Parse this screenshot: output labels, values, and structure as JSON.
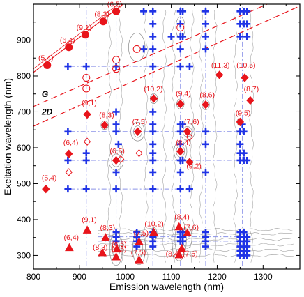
{
  "chart_data": {
    "type": "scatter",
    "xlabel": "Emission wavelength (nm)",
    "ylabel": "Excitation wavelength (nm)",
    "xlim": [
      800,
      1380
    ],
    "ylim": [
      262,
      1000
    ],
    "x_ticks": [
      "800",
      "900",
      "1000",
      "1100",
      "1200",
      "1300"
    ],
    "y_ticks": [
      "300",
      "400",
      "500",
      "600",
      "700",
      "800",
      "900"
    ],
    "colors": {
      "red": "#e8141b",
      "blue": "#1f33e6",
      "grid_blue": "#8a92e8",
      "contour": "#8a8a8a"
    },
    "line_labels": [
      {
        "text": "G",
        "x": 818,
        "y": 742
      },
      {
        "text": "2D",
        "x": 818,
        "y": 692
      }
    ],
    "lines": [
      {
        "name": "solid",
        "style": "solid",
        "points": [
          [
            800,
            810
          ],
          [
            1000,
            1005
          ]
        ]
      },
      {
        "name": "G",
        "style": "dashed",
        "points": [
          [
            800,
            715
          ],
          [
            1380,
            1040
          ]
        ]
      },
      {
        "name": "2D",
        "style": "dashed",
        "points": [
          [
            800,
            660
          ],
          [
            1380,
            995
          ]
        ]
      }
    ],
    "dashdot_verticals": [
      915,
      980,
      1060,
      1120,
      1175,
      1255
    ],
    "dashdot_horizontals": [
      {
        "y": 827,
        "x1": 880,
        "x2": 1140
      },
      {
        "y": 645,
        "x1": 880,
        "x2": 1260
      },
      {
        "y": 565,
        "x1": 880,
        "x2": 1260
      },
      {
        "y": 485,
        "x1": 880,
        "x2": 1140
      },
      {
        "y": 352,
        "x1": 940,
        "x2": 1260
      },
      {
        "y": 340,
        "x1": 940,
        "x2": 1260
      }
    ],
    "filled_circles": [
      {
        "x": 830,
        "y": 830,
        "label": "(5,4)"
      },
      {
        "x": 877,
        "y": 880,
        "label": "(6,4)"
      },
      {
        "x": 913,
        "y": 915,
        "label": "(9,1)"
      },
      {
        "x": 952,
        "y": 952,
        "label": "(8,3)"
      },
      {
        "x": 980,
        "y": 980,
        "label": "(6,5)"
      }
    ],
    "open_circles": [
      {
        "x": 915,
        "y": 795
      },
      {
        "x": 915,
        "y": 765
      },
      {
        "x": 980,
        "y": 845
      },
      {
        "x": 980,
        "y": 820
      },
      {
        "x": 1025,
        "y": 875
      },
      {
        "x": 1120,
        "y": 935
      }
    ],
    "filled_diamonds": [
      {
        "x": 827,
        "y": 485,
        "label": "(5,4)",
        "lx": 818,
        "ly": 510
      },
      {
        "x": 877,
        "y": 583,
        "label": "(6,4)",
        "lx": 865,
        "ly": 608
      },
      {
        "x": 917,
        "y": 693,
        "label": "(9,1)",
        "lx": 905,
        "ly": 718
      },
      {
        "x": 955,
        "y": 663,
        "label": "(8,3)",
        "lx": 943,
        "ly": 684
      },
      {
        "x": 980,
        "y": 565,
        "label": "(6,5)",
        "lx": 966,
        "ly": 584
      },
      {
        "x": 1027,
        "y": 645,
        "label": "(7,5)",
        "lx": 1015,
        "ly": 666
      },
      {
        "x": 1062,
        "y": 737,
        "label": "(10,2)",
        "lx": 1040,
        "ly": 757
      },
      {
        "x": 1120,
        "y": 722,
        "label": "(9,4)",
        "lx": 1110,
        "ly": 745
      },
      {
        "x": 1120,
        "y": 590,
        "label": "(8,4)",
        "lx": 1110,
        "ly": 608
      },
      {
        "x": 1135,
        "y": 645,
        "label": "(7,6)",
        "lx": 1128,
        "ly": 666
      },
      {
        "x": 1140,
        "y": 560,
        "label": "(9,2)",
        "lx": 1133,
        "ly": 543
      },
      {
        "x": 1175,
        "y": 720,
        "label": "(8,6)",
        "lx": 1162,
        "ly": 741
      },
      {
        "x": 1205,
        "y": 803,
        "label": "(11,3)",
        "lx": 1187,
        "ly": 823
      },
      {
        "x": 1260,
        "y": 795,
        "label": "(10,5)",
        "lx": 1242,
        "ly": 823
      },
      {
        "x": 1272,
        "y": 732,
        "label": "(8,7)",
        "lx": 1258,
        "ly": 757
      },
      {
        "x": 1250,
        "y": 672,
        "label": "(9,5)",
        "lx": 1240,
        "ly": 690
      }
    ],
    "open_diamonds": [
      {
        "x": 877,
        "y": 532
      },
      {
        "x": 917,
        "y": 617
      },
      {
        "x": 990,
        "y": 568
      },
      {
        "x": 1030,
        "y": 585
      },
      {
        "x": 1140,
        "y": 630
      }
    ],
    "filled_triangles": [
      {
        "x": 878,
        "y": 322,
        "label": "(6,4)",
        "lx": 866,
        "ly": 344
      },
      {
        "x": 917,
        "y": 371,
        "label": "(9,1)",
        "lx": 905,
        "ly": 393
      },
      {
        "x": 957,
        "y": 350,
        "label": "(8,3)",
        "lx": 945,
        "ly": 371
      },
      {
        "x": 950,
        "y": 308,
        "label": "(8,3)",
        "lx": 929,
        "ly": 316
      },
      {
        "x": 982,
        "y": 318,
        "label": "(6,5)",
        "lx": 970,
        "ly": 325
      },
      {
        "x": 980,
        "y": 296,
        "label": "(6,5)",
        "lx": 970,
        "ly": 312
      },
      {
        "x": 1030,
        "y": 338,
        "label": "(7,5)",
        "lx": 1018,
        "ly": 355
      },
      {
        "x": 1030,
        "y": 288,
        "label": "(7,5)",
        "lx": 1012,
        "ly": 302
      },
      {
        "x": 1062,
        "y": 365,
        "label": "(10,2)",
        "lx": 1042,
        "ly": 381
      },
      {
        "x": 1117,
        "y": 380,
        "label": "(8,4)",
        "lx": 1107,
        "ly": 401
      },
      {
        "x": 1117,
        "y": 302,
        "label": "(8,4)",
        "lx": 1088,
        "ly": 298
      },
      {
        "x": 1123,
        "y": 320,
        "label": "(7,6)",
        "lx": 1125,
        "ly": 298
      },
      {
        "x": 1135,
        "y": 363,
        "label": "(7,6)",
        "lx": 1127,
        "ly": 372
      }
    ],
    "blue_plus": [
      [
        1040,
        980
      ],
      [
        1060,
        980
      ],
      [
        1120,
        980
      ],
      [
        1125,
        980
      ],
      [
        1175,
        980
      ],
      [
        1250,
        980
      ],
      [
        1258,
        980
      ],
      [
        1265,
        980
      ],
      [
        1060,
        945
      ],
      [
        1120,
        945
      ],
      [
        1175,
        945
      ],
      [
        1250,
        945
      ],
      [
        1258,
        945
      ],
      [
        1265,
        945
      ],
      [
        1060,
        910
      ],
      [
        1100,
        910
      ],
      [
        1120,
        910
      ],
      [
        1125,
        910
      ],
      [
        1175,
        910
      ],
      [
        1250,
        910
      ],
      [
        1265,
        910
      ],
      [
        1040,
        875
      ],
      [
        1060,
        875
      ],
      [
        1120,
        875
      ],
      [
        1175,
        875
      ],
      [
        875,
        827
      ],
      [
        915,
        827
      ],
      [
        980,
        827
      ],
      [
        1060,
        827
      ],
      [
        1120,
        827
      ],
      [
        1140,
        827
      ],
      [
        980,
        700
      ],
      [
        1060,
        700
      ],
      [
        980,
        665
      ],
      [
        1060,
        665
      ],
      [
        1120,
        665
      ],
      [
        1125,
        665
      ],
      [
        1255,
        665
      ],
      [
        875,
        645
      ],
      [
        980,
        645
      ],
      [
        1060,
        645
      ],
      [
        1120,
        645
      ],
      [
        1175,
        645
      ],
      [
        1250,
        645
      ],
      [
        1258,
        645
      ],
      [
        985,
        610
      ],
      [
        1060,
        610
      ],
      [
        1120,
        610
      ],
      [
        1175,
        610
      ],
      [
        1250,
        610
      ],
      [
        915,
        585
      ],
      [
        1060,
        585
      ],
      [
        1250,
        585
      ],
      [
        1258,
        585
      ],
      [
        875,
        565
      ],
      [
        915,
        565
      ],
      [
        1060,
        565
      ],
      [
        1120,
        565
      ],
      [
        1125,
        565
      ],
      [
        1250,
        565
      ],
      [
        1258,
        565
      ],
      [
        1265,
        565
      ],
      [
        980,
        532
      ],
      [
        1060,
        532
      ],
      [
        1120,
        532
      ],
      [
        1175,
        532
      ],
      [
        875,
        485
      ],
      [
        915,
        485
      ],
      [
        980,
        485
      ],
      [
        1060,
        485
      ],
      [
        1120,
        485
      ],
      [
        1140,
        485
      ],
      [
        980,
        365
      ],
      [
        1025,
        365
      ],
      [
        1060,
        365
      ],
      [
        1120,
        365
      ],
      [
        1125,
        365
      ],
      [
        1175,
        365
      ],
      [
        1250,
        365
      ],
      [
        1258,
        365
      ],
      [
        980,
        352
      ],
      [
        1025,
        352
      ],
      [
        1060,
        352
      ],
      [
        1120,
        352
      ],
      [
        1125,
        352
      ],
      [
        1175,
        352
      ],
      [
        1250,
        352
      ],
      [
        1258,
        352
      ],
      [
        1265,
        352
      ],
      [
        980,
        340
      ],
      [
        1025,
        340
      ],
      [
        1060,
        340
      ],
      [
        1120,
        340
      ],
      [
        1125,
        340
      ],
      [
        1175,
        340
      ],
      [
        1250,
        340
      ],
      [
        1258,
        340
      ],
      [
        1265,
        340
      ],
      [
        1025,
        325
      ],
      [
        1060,
        325
      ],
      [
        1175,
        325
      ],
      [
        1250,
        325
      ],
      [
        1258,
        325
      ],
      [
        1265,
        325
      ],
      [
        1250,
        312
      ],
      [
        1258,
        312
      ],
      [
        1265,
        312
      ],
      [
        1250,
        300
      ],
      [
        1258,
        300
      ],
      [
        1265,
        300
      ]
    ]
  }
}
